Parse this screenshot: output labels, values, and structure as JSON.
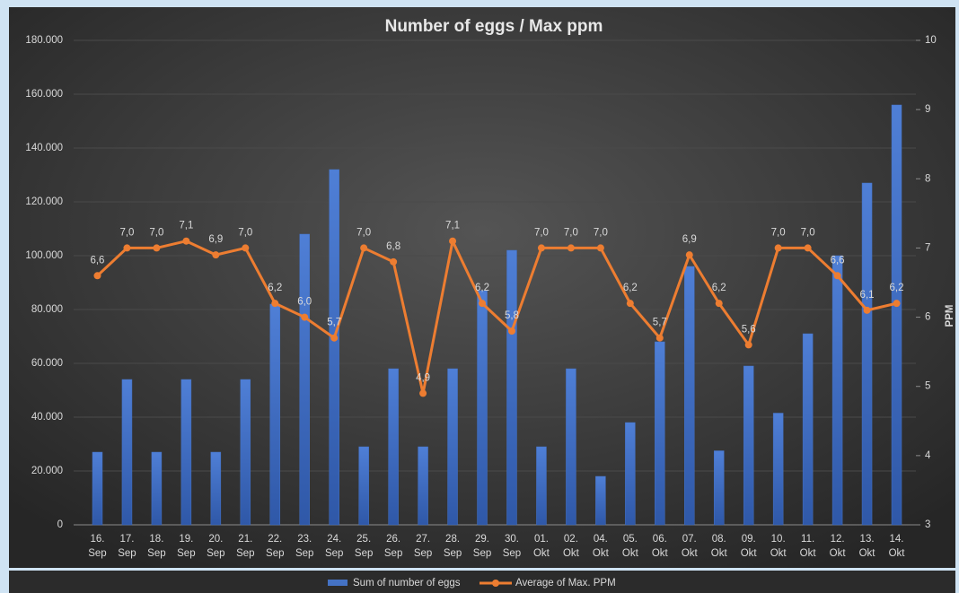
{
  "chart_data": {
    "type": "bar-line",
    "title": "Number of eggs / Max ppm",
    "categories": [
      "16. Sep",
      "17. Sep",
      "18. Sep",
      "19. Sep",
      "20. Sep",
      "21. Sep",
      "22. Sep",
      "23. Sep",
      "24. Sep",
      "25. Sep",
      "26. Sep",
      "27. Sep",
      "28. Sep",
      "29. Sep",
      "30. Sep",
      "01. Okt",
      "02. Okt",
      "04. Okt",
      "05. Okt",
      "06. Okt",
      "07. Okt",
      "08. Okt",
      "09. Okt",
      "10. Okt",
      "11. Okt",
      "12. Okt",
      "13. Okt",
      "14. Okt"
    ],
    "series": [
      {
        "name": "Sum of number of eggs",
        "type": "bar",
        "color": "#4472c4",
        "values": [
          27000,
          54000,
          27000,
          54000,
          27000,
          54000,
          82000,
          108000,
          132000,
          29000,
          58000,
          29000,
          58000,
          87000,
          102000,
          29000,
          58000,
          18000,
          38000,
          68000,
          96000,
          27500,
          59000,
          41500,
          71000,
          100000,
          127000,
          156000
        ]
      },
      {
        "name": "Average of Max. PPM",
        "type": "line",
        "axis": "y2",
        "color": "#ed7d31",
        "values": [
          6.6,
          7.0,
          7.0,
          7.1,
          6.9,
          7.0,
          6.2,
          6.0,
          5.7,
          7.0,
          6.8,
          4.9,
          7.1,
          6.2,
          5.8,
          7.0,
          7.0,
          7.0,
          6.2,
          5.7,
          6.9,
          6.2,
          5.6,
          7.0,
          7.0,
          6.6,
          6.1,
          6.2
        ],
        "value_labels": [
          "6,6",
          "7,0",
          "7,0",
          "7,1",
          "6,9",
          "7,0",
          "6,2",
          "6,0",
          "5,7",
          "7,0",
          "6,8",
          "4,9",
          "7,1",
          "6,2",
          "5,8",
          "7,0",
          "7,0",
          "7,0",
          "6,2",
          "5,7",
          "6,9",
          "6,2",
          "5,6",
          "7,0",
          "7,0",
          "6,6",
          "6,1",
          "6,2"
        ]
      }
    ],
    "ylim": [
      0,
      180000
    ],
    "yticks": [
      0,
      {
        "value": 20000,
        "label": "20.000"
      },
      {
        "value": 40000,
        "label": "40.000"
      },
      {
        "value": 60000,
        "label": "60.000"
      },
      {
        "value": 80000,
        "label": "80.000"
      },
      {
        "value": 100000,
        "label": "100.000"
      },
      {
        "value": 120000,
        "label": "120.000"
      },
      {
        "value": 140000,
        "label": "140.000"
      },
      {
        "value": 160000,
        "label": "160.000"
      },
      {
        "value": 180000,
        "label": "180.000"
      }
    ],
    "y2lim": [
      3,
      10
    ],
    "y2ticks": [
      3,
      4,
      5,
      6,
      7,
      8,
      9,
      10
    ],
    "y2label": "PPM",
    "grid": true
  }
}
